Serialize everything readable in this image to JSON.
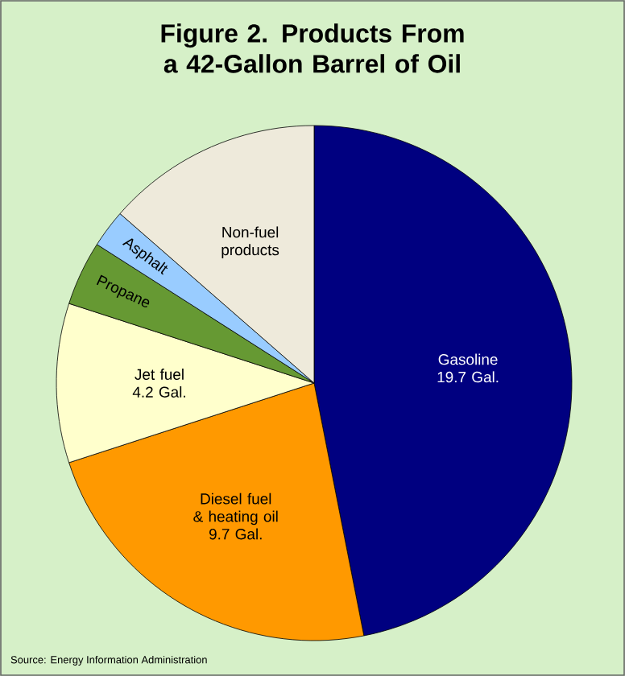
{
  "chart_data": {
    "type": "pie",
    "title": "Figure 2. Products From a 42-Gallon Barrel of Oil",
    "categories": [
      "Gasoline",
      "Diesel fuel & heating oil",
      "Jet fuel",
      "Propane",
      "Asphalt",
      "Non-fuel products"
    ],
    "values": [
      19.7,
      9.7,
      4.2,
      1.7,
      1.0,
      5.7
    ],
    "value_labels": [
      "19.7 Gal.",
      "9.7 Gal.",
      "4.2 Gal.",
      null,
      null,
      null
    ],
    "colors": [
      "#000080",
      "#ff9900",
      "#ffffcc",
      "#669933",
      "#99ccff",
      "#eeeadb"
    ],
    "annotations": [
      "Source: Energy Information Administration"
    ]
  }
}
